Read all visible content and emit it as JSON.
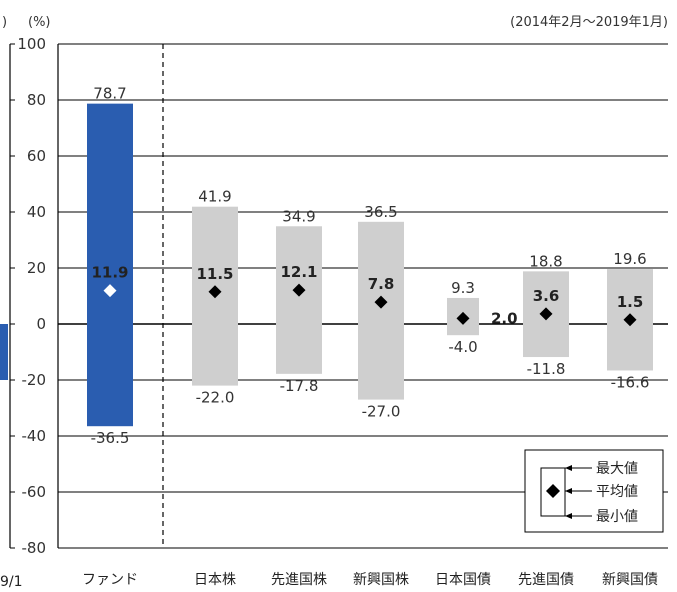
{
  "chart_data": {
    "type": "bar",
    "left_panel": {
      "unit_fragment": ")",
      "tick_fragment": "9/1",
      "bar_color": "#2a5db0",
      "bar_range": [
        -20,
        0
      ]
    },
    "unit_label": "(%)",
    "period_note": "(2014年2月～2019年1月)",
    "ylim": [
      -80,
      100
    ],
    "yticks": [
      100,
      80,
      60,
      40,
      20,
      0,
      -20,
      -40,
      -60,
      -80
    ],
    "categories": [
      "ファンド",
      "日本株",
      "先進国株",
      "新興国株",
      "日本国債",
      "先進国債",
      "新興国債"
    ],
    "series": [
      {
        "name": "最大値",
        "values": [
          78.7,
          41.9,
          34.9,
          36.5,
          9.3,
          18.8,
          19.6
        ]
      },
      {
        "name": "平均値",
        "values": [
          11.9,
          11.5,
          12.1,
          7.8,
          2.0,
          3.6,
          1.5
        ]
      },
      {
        "name": "最小値",
        "values": [
          -36.5,
          -22.0,
          -17.8,
          -27.0,
          -4.0,
          -11.8,
          -16.6
        ]
      }
    ],
    "max_labels": [
      "78.7",
      "41.9",
      "34.9",
      "36.5",
      "9.3",
      "18.8",
      "19.6"
    ],
    "mean_labels": [
      "11.9",
      "11.5",
      "12.1",
      "7.8",
      "2.0",
      "3.6",
      "1.5"
    ],
    "min_labels": [
      "-36.5",
      "-22.0",
      "-17.8",
      "-27.0",
      "-4.0",
      "-11.8",
      "-16.6"
    ],
    "colors": {
      "fund": "#2a5db0",
      "asset": "#cfcfcf",
      "marker": "#000000",
      "grid": "#000000"
    },
    "legend": {
      "max": "最大値",
      "mean": "平均値",
      "min": "最小値",
      "placement": "bottom-right"
    }
  }
}
